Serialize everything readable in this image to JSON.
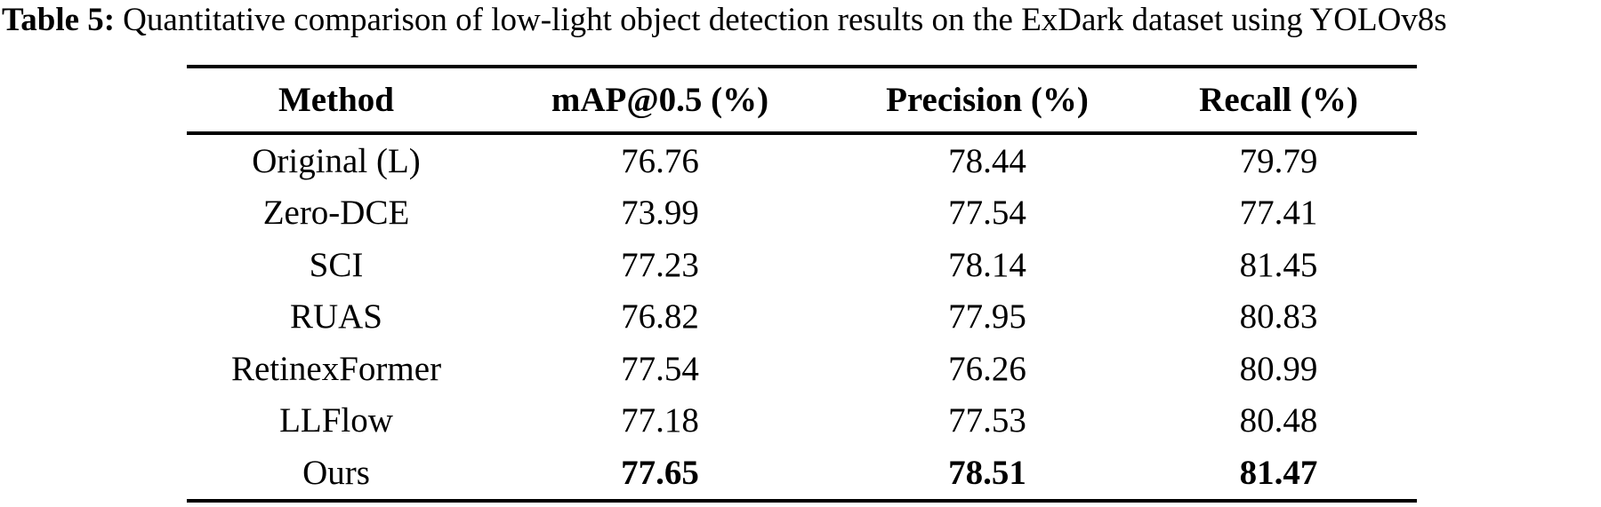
{
  "caption": {
    "label": "Table 5:",
    "text": "Quantitative comparison of low-light object detection results on the ExDark dataset using YOLOv8s"
  },
  "colors": {
    "text": "#000000",
    "background": "#ffffff",
    "rule": "#000000"
  },
  "table": {
    "columns": [
      "Method",
      "mAP@0.5 (%)",
      "Precision (%)",
      "Recall (%)"
    ],
    "rows": [
      {
        "method": "Original (L)",
        "map": "76.76",
        "precision": "78.44",
        "recall": "79.79"
      },
      {
        "method": "Zero-DCE",
        "map": "73.99",
        "precision": "77.54",
        "recall": "77.41"
      },
      {
        "method": "SCI",
        "map": "77.23",
        "precision": "78.14",
        "recall": "81.45"
      },
      {
        "method": "RUAS",
        "map": "76.82",
        "precision": "77.95",
        "recall": "80.83"
      },
      {
        "method": "RetinexFormer",
        "map": "77.54",
        "precision": "76.26",
        "recall": "80.99"
      },
      {
        "method": "LLFlow",
        "map": "77.18",
        "precision": "77.53",
        "recall": "80.48"
      },
      {
        "method": "Ours",
        "map": "77.65",
        "precision": "78.51",
        "recall": "81.47"
      }
    ]
  }
}
